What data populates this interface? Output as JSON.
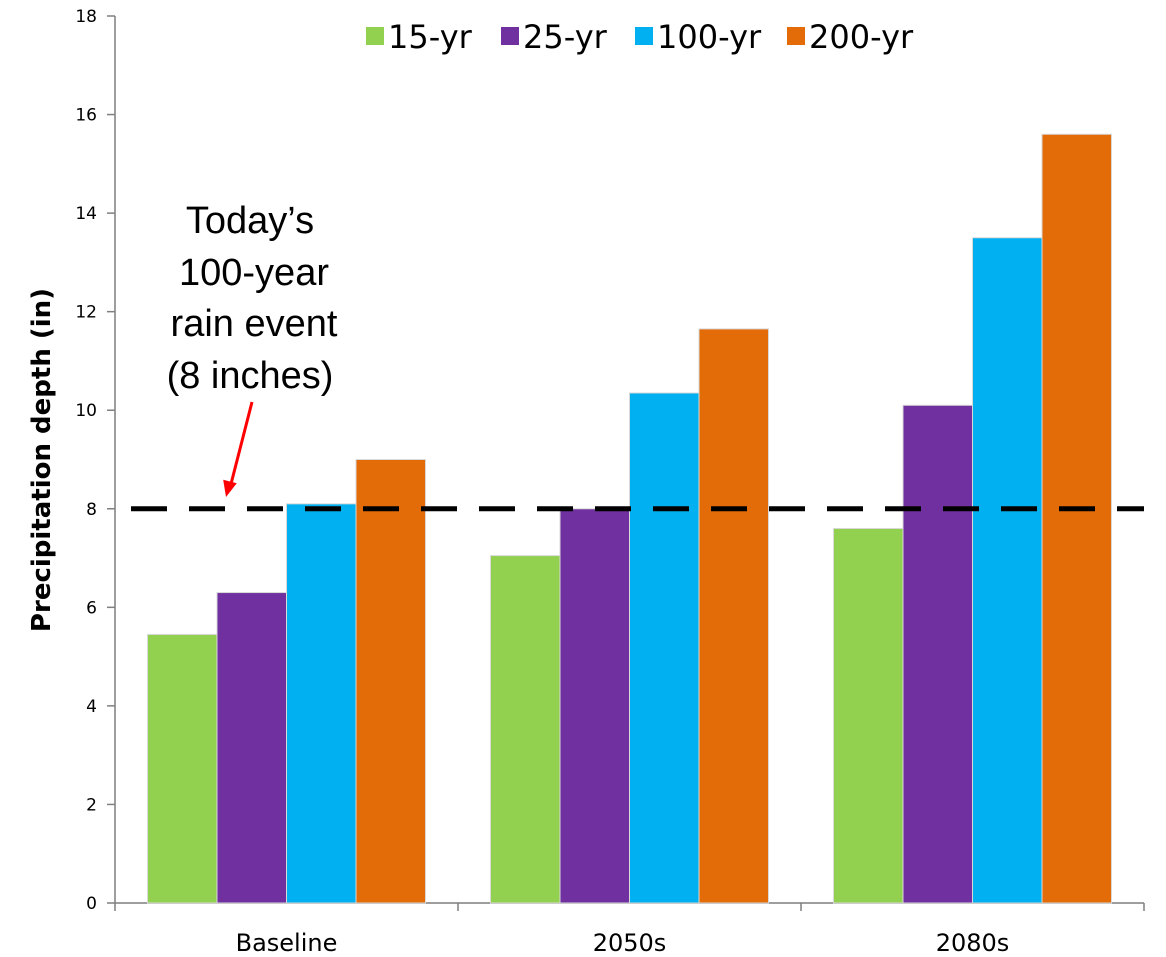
{
  "chart_data": {
    "type": "bar",
    "title": "",
    "xlabel": "",
    "ylabel": "Precipitation depth (in)",
    "ylim": [
      0,
      18
    ],
    "yticks": [
      0,
      2,
      4,
      6,
      8,
      10,
      12,
      14,
      16,
      18
    ],
    "grid": false,
    "legend_position": "top",
    "categories": [
      "Baseline",
      "2050s",
      "2080s"
    ],
    "series": [
      {
        "name": "15-yr",
        "color": "#92d050",
        "values": [
          5.45,
          7.05,
          7.6
        ]
      },
      {
        "name": "25-yr",
        "color": "#7030a0",
        "values": [
          6.3,
          8.0,
          10.1
        ]
      },
      {
        "name": "100-yr",
        "color": "#00b0f0",
        "values": [
          8.1,
          10.35,
          13.5
        ]
      },
      {
        "name": "200-yr",
        "color": "#e36c09",
        "values": [
          9.0,
          11.65,
          15.6
        ]
      }
    ],
    "reference_line": {
      "value": 8,
      "style": "dashed",
      "color": "#000000"
    },
    "annotation": {
      "lines": [
        "Today’s",
        "100-year",
        "rain event",
        "(8 inches)"
      ],
      "arrow_color": "#ff0000"
    }
  }
}
